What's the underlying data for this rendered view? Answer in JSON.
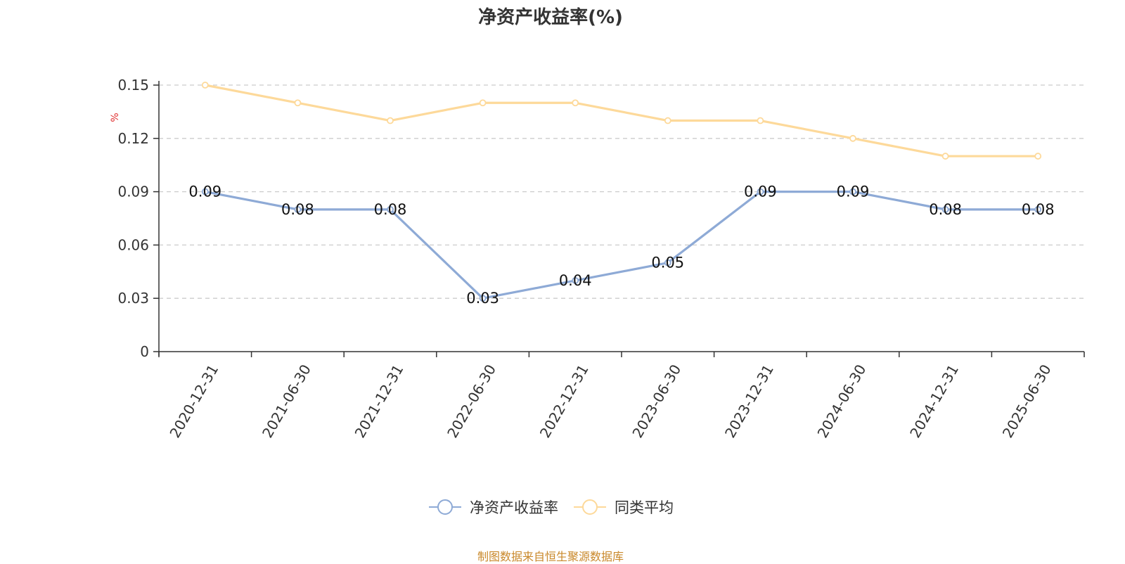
{
  "chart_data": {
    "type": "line",
    "title": "净资产收益率(%)",
    "ylabel": "%",
    "xlabel": "",
    "categories": [
      "2020-12-31",
      "2021-06-30",
      "2021-12-31",
      "2022-06-30",
      "2022-12-31",
      "2023-06-30",
      "2023-12-31",
      "2024-06-30",
      "2024-12-31",
      "2025-06-30"
    ],
    "ylim": [
      0,
      0.15
    ],
    "yticks": [
      "0",
      "0.03",
      "0.06",
      "0.09",
      "0.12",
      "0.15"
    ],
    "grid": true,
    "legend_position": "bottom",
    "series": [
      {
        "name": "净资产收益率",
        "color": "#8eaad6",
        "values": [
          0.09,
          0.08,
          0.08,
          0.03,
          0.04,
          0.05,
          0.09,
          0.09,
          0.08,
          0.08
        ],
        "data_labels": [
          "0.09",
          "0.08",
          "0.08",
          "0.03",
          "0.04",
          "0.05",
          "0.09",
          "0.09",
          "0.08",
          "0.08"
        ]
      },
      {
        "name": "同类平均",
        "color": "#fdd99a",
        "values": [
          0.15,
          0.14,
          0.13,
          0.14,
          0.14,
          0.13,
          0.13,
          0.12,
          0.11,
          0.11
        ]
      }
    ]
  },
  "footer": "制图数据来自恒生聚源数据库",
  "colors": {
    "axis": "#333333",
    "grid": "#cccccc",
    "unit": "#e03030",
    "footer": "#c9882a"
  }
}
